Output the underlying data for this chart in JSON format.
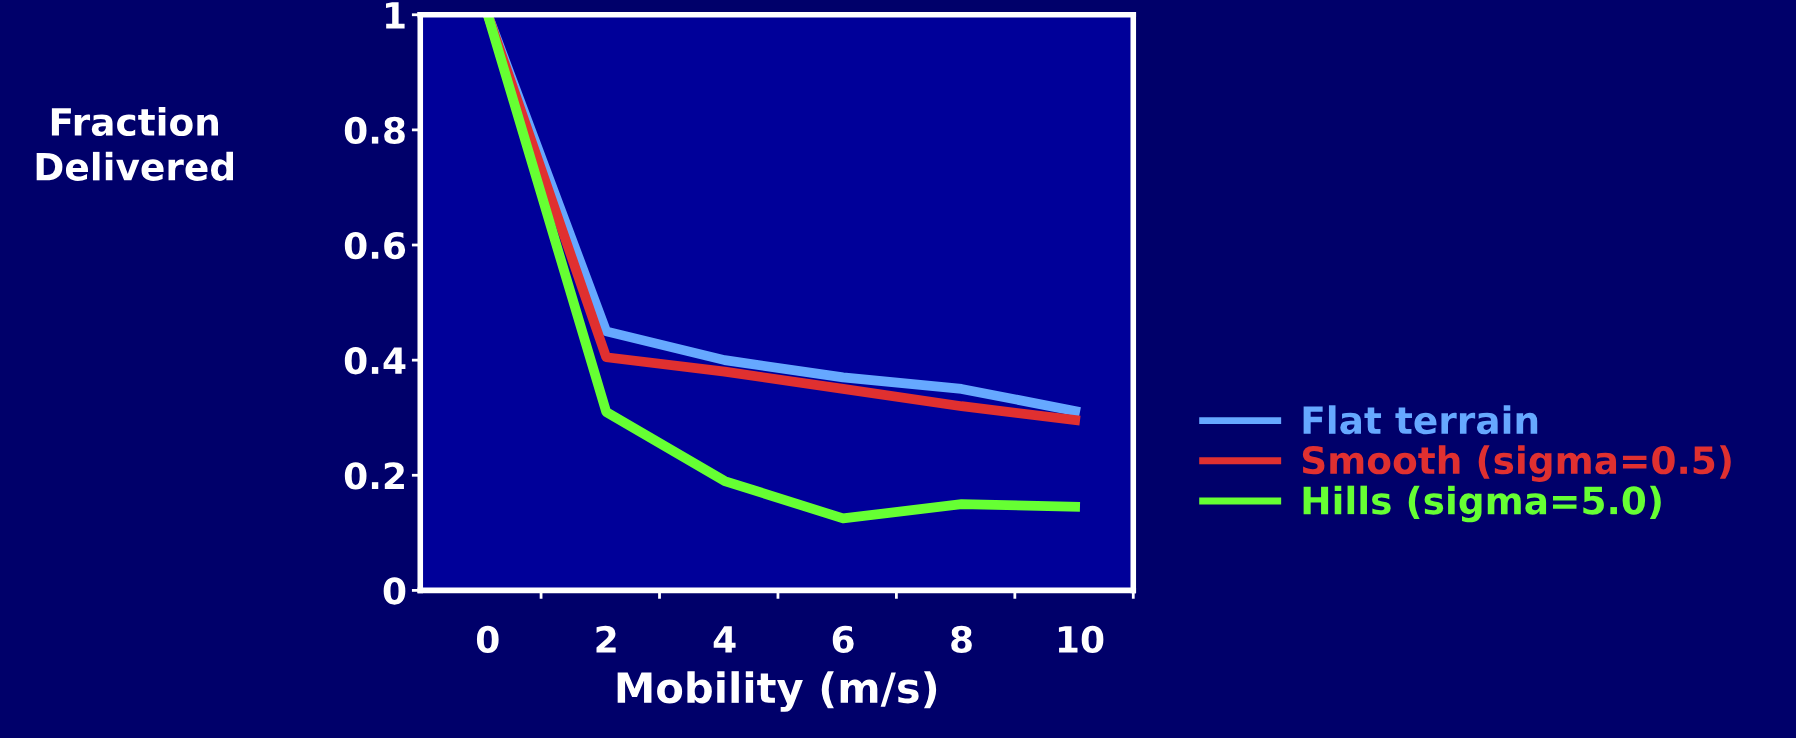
{
  "chart_data": {
    "type": "line",
    "xlabel": "Mobility (m/s)",
    "ylabel": "Fraction\nDelivered",
    "categories": [
      "0",
      "2",
      "4",
      "6",
      "8",
      "10"
    ],
    "series": [
      {
        "name": "Flat terrain",
        "color": "#66a8ff",
        "values": [
          1,
          0.45,
          0.4,
          0.37,
          0.35,
          0.31
        ]
      },
      {
        "name": "Smooth (sigma=0.5)",
        "color": "#e03030",
        "values": [
          1,
          0.405,
          0.38,
          0.35,
          0.32,
          0.295
        ]
      },
      {
        "name": "Hills (sigma=5.0)",
        "color": "#66ff33",
        "values": [
          1,
          0.31,
          0.19,
          0.125,
          0.15,
          0.145
        ]
      }
    ],
    "ylim": [
      0,
      1
    ],
    "yticks": [
      0,
      0.2,
      0.4,
      0.6,
      0.8,
      1
    ],
    "grid": false,
    "legend": "right",
    "marker": "none",
    "line_style": "solid"
  }
}
